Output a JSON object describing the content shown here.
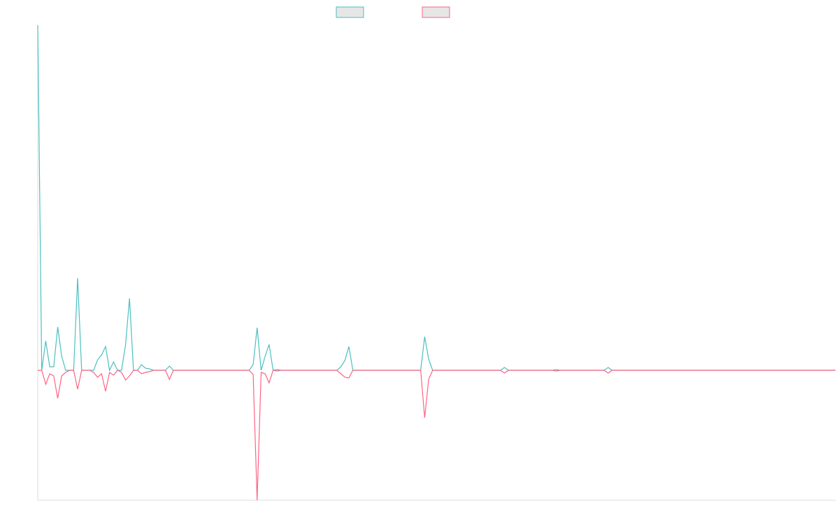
{
  "chart_data": {
    "type": "line",
    "ylim": [
      -186,
      494
    ],
    "series": [
      {
        "color": "#4bc0c0",
        "values": [
          494,
          0,
          42,
          5,
          5,
          62,
          20,
          0,
          0,
          0,
          132,
          0,
          0,
          0,
          0,
          15,
          22,
          34,
          0,
          12,
          0,
          0,
          36,
          103,
          0,
          0,
          8,
          3,
          2,
          0,
          0,
          0,
          0,
          6,
          0,
          0,
          0,
          0,
          0,
          0,
          0,
          0,
          0,
          0,
          0,
          0,
          0,
          0,
          0,
          0,
          0,
          0,
          0,
          0,
          8,
          61,
          0,
          20,
          37,
          0,
          1,
          0,
          0,
          0,
          0,
          0,
          0,
          0,
          0,
          0,
          0,
          0,
          0,
          0,
          0,
          0,
          5,
          14,
          34,
          0,
          0,
          0,
          0,
          0,
          0,
          0,
          0,
          0,
          0,
          0,
          0,
          0,
          0,
          0,
          0,
          0,
          0,
          48,
          16,
          0,
          0,
          0,
          0,
          0,
          0,
          0,
          0,
          0,
          0,
          0,
          0,
          0,
          0,
          0,
          0,
          0,
          0,
          4,
          0,
          0,
          0,
          0,
          0,
          0,
          0,
          0,
          0,
          0,
          0,
          0,
          1,
          0,
          0,
          0,
          0,
          0,
          0,
          0,
          0,
          0,
          0,
          0,
          0,
          4,
          0,
          0,
          0,
          0,
          0,
          0,
          0,
          0,
          0,
          0,
          0,
          0,
          0,
          0,
          0,
          0,
          0,
          0,
          0,
          0,
          0,
          0,
          0,
          0,
          0,
          0,
          0,
          0,
          0,
          0,
          0,
          0,
          0,
          0,
          0,
          0,
          0,
          0,
          0,
          0,
          0,
          0,
          0,
          0,
          0,
          0,
          0,
          0,
          0,
          0,
          0,
          0,
          0,
          0,
          0,
          0,
          0
        ]
      },
      {
        "color": "#ff6384",
        "values": [
          0,
          0,
          -20,
          -5,
          -8,
          -40,
          -8,
          -3,
          0,
          0,
          -27,
          0,
          0,
          0,
          -3,
          -10,
          -5,
          -30,
          -3,
          -7,
          0,
          -3,
          -14,
          -8,
          0,
          0,
          -5,
          -3,
          -2,
          0,
          0,
          0,
          0,
          -13,
          0,
          0,
          0,
          0,
          0,
          0,
          0,
          0,
          0,
          0,
          0,
          0,
          0,
          0,
          0,
          0,
          0,
          0,
          0,
          0,
          -6,
          -186,
          -3,
          -5,
          -18,
          0,
          -1,
          0,
          0,
          0,
          0,
          0,
          0,
          0,
          0,
          0,
          0,
          0,
          0,
          0,
          0,
          0,
          -5,
          -10,
          -11,
          0,
          0,
          0,
          0,
          0,
          0,
          0,
          0,
          0,
          0,
          0,
          0,
          0,
          0,
          0,
          0,
          0,
          0,
          -68,
          -13,
          0,
          0,
          0,
          0,
          0,
          0,
          0,
          0,
          0,
          0,
          0,
          0,
          0,
          0,
          0,
          0,
          0,
          0,
          -4,
          0,
          0,
          0,
          0,
          0,
          0,
          0,
          0,
          0,
          0,
          0,
          0,
          -1,
          0,
          0,
          0,
          0,
          0,
          0,
          0,
          0,
          0,
          0,
          0,
          0,
          -4,
          0,
          0,
          0,
          0,
          0,
          0,
          0,
          0,
          0,
          0,
          0,
          0,
          0,
          0,
          0,
          0,
          0,
          0,
          0,
          0,
          0,
          0,
          0,
          0,
          0,
          0,
          0,
          0,
          0,
          0,
          0,
          0,
          0,
          0,
          0,
          0,
          0,
          0,
          0,
          0,
          0,
          0,
          0,
          0,
          0,
          0,
          0,
          0,
          0,
          0,
          0,
          0,
          0,
          0,
          0,
          0,
          0
        ]
      }
    ]
  }
}
